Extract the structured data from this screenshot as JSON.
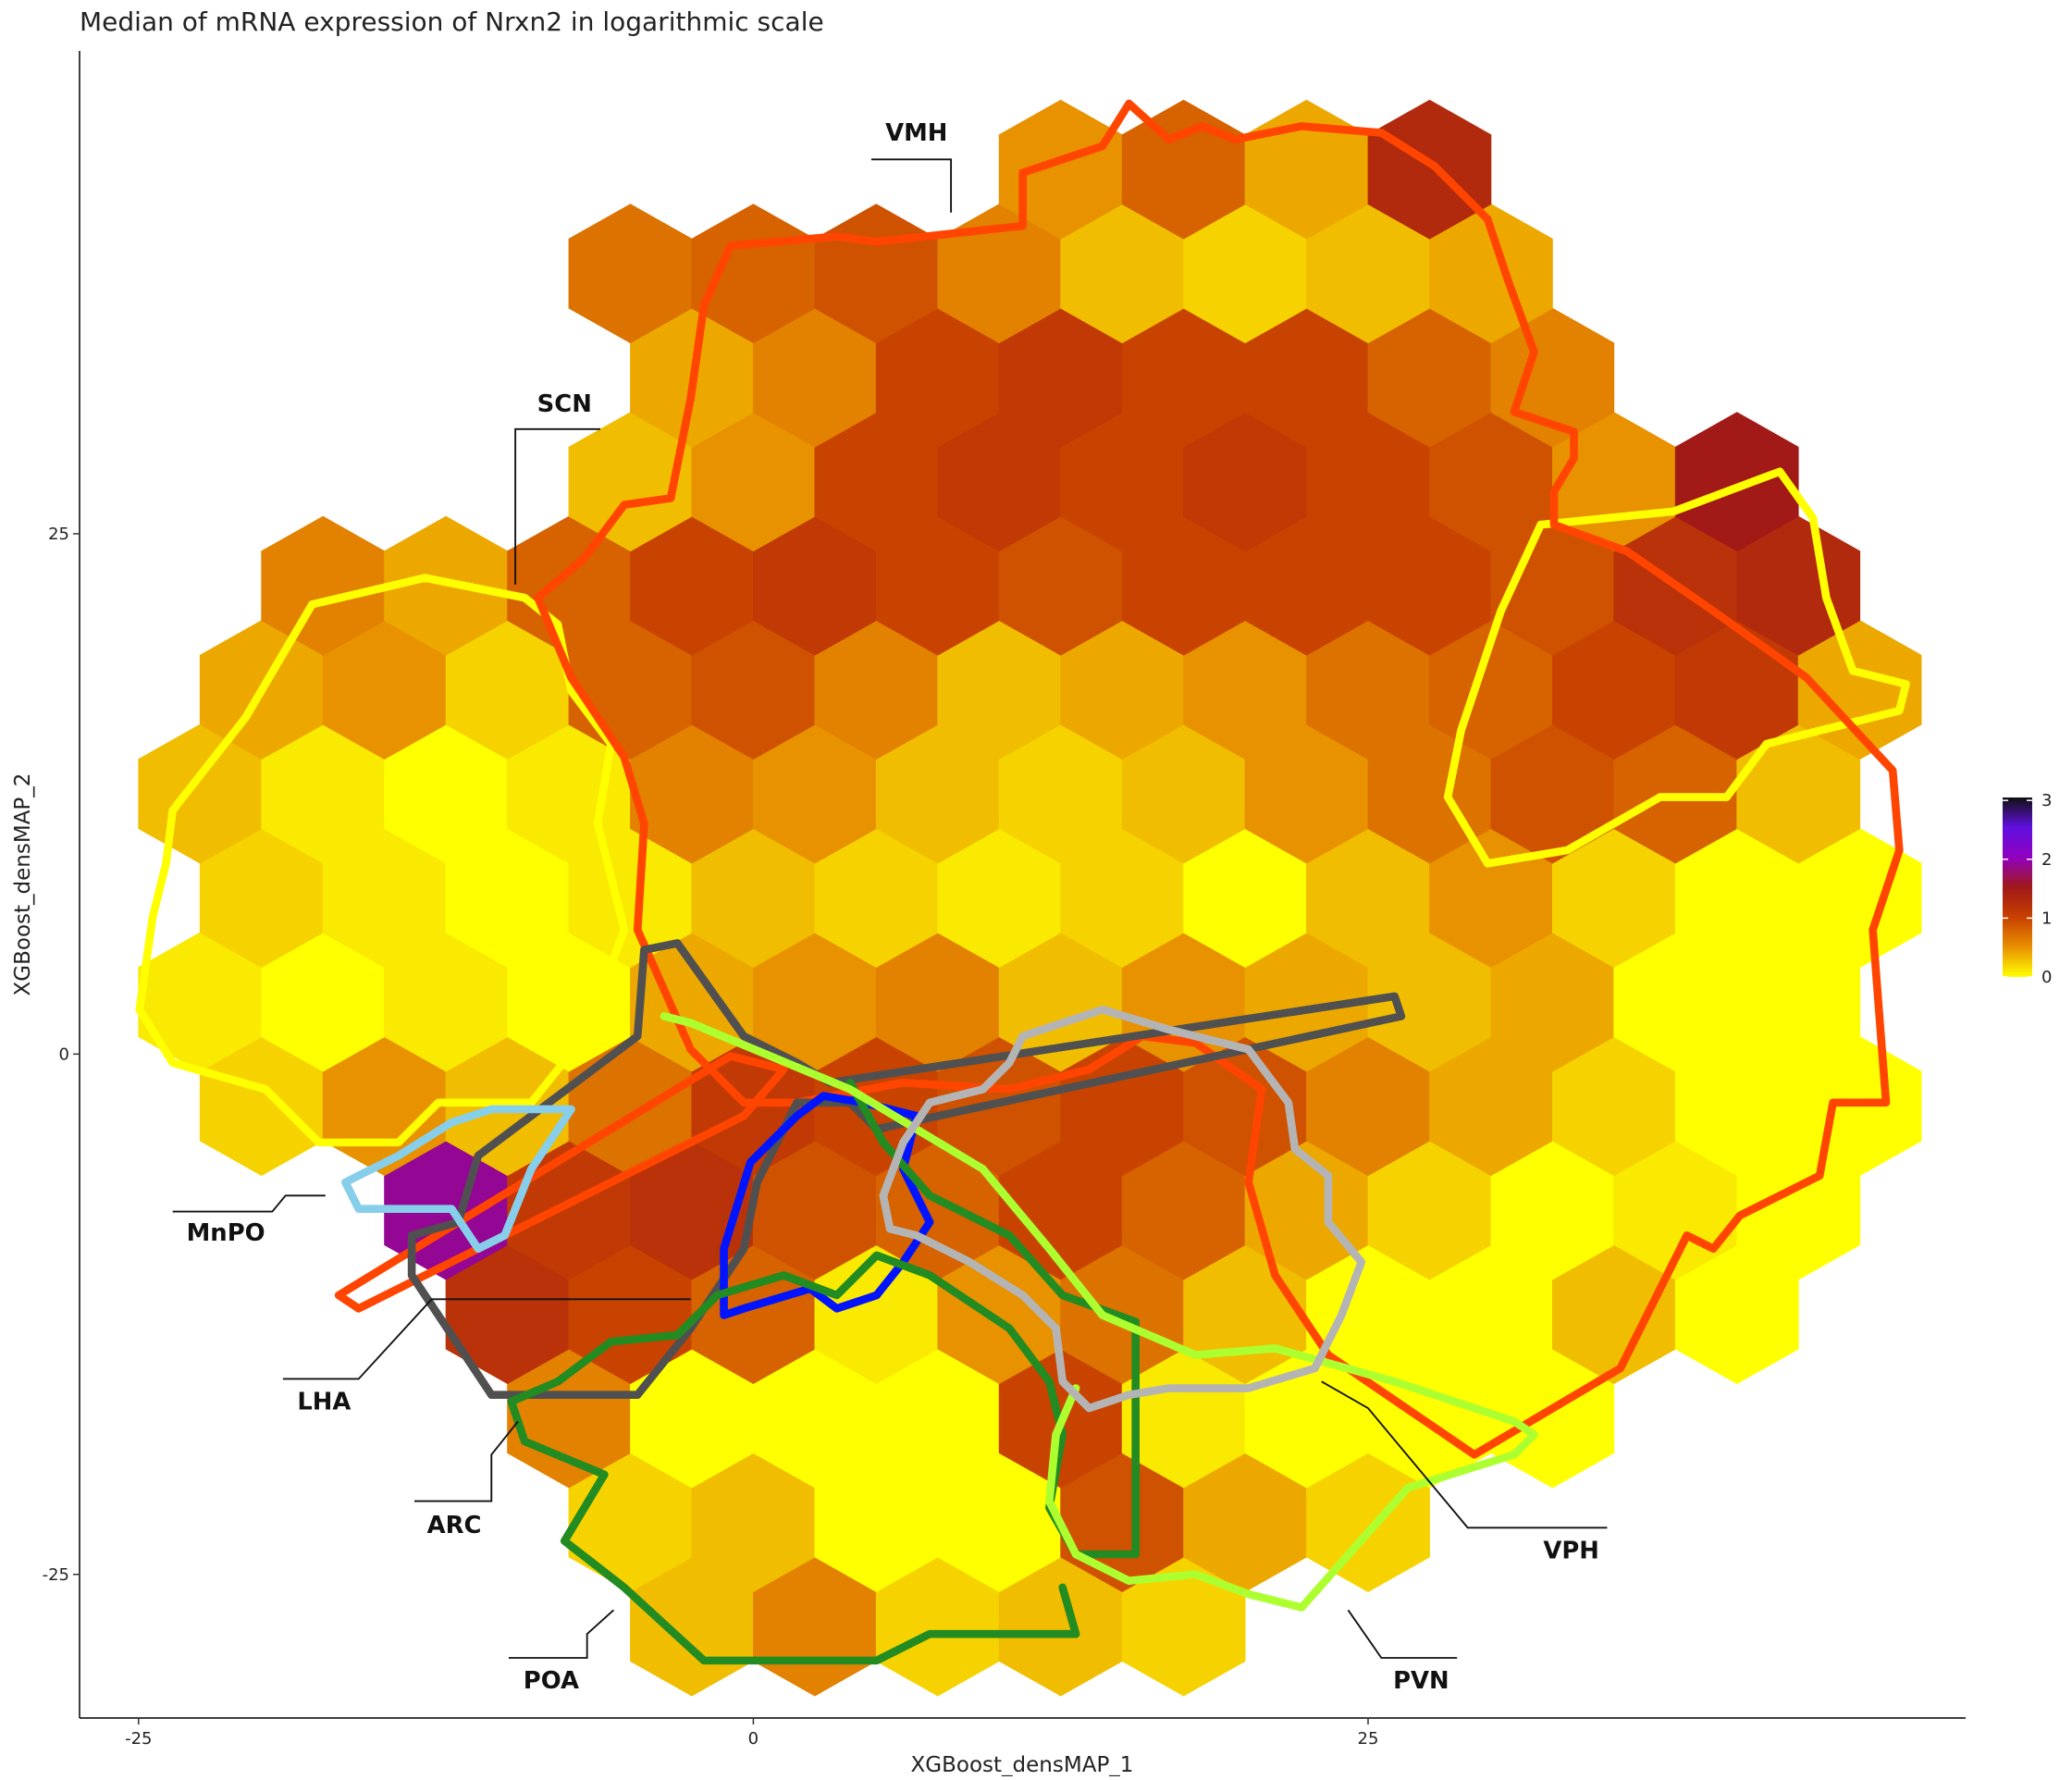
{
  "chart_data": {
    "type": "hexbin",
    "title": "Median of mRNA expression of Nrxn2 in logarithmic scale",
    "x_label": "XGBoost_densMAP_1",
    "y_label": "XGBoost_densMAP_2",
    "xlim": [
      -27.4,
      49.3
    ],
    "ylim": [
      -31.9,
      48.2
    ],
    "xticks": [
      -25,
      0,
      25
    ],
    "yticks": [
      -25,
      0,
      25
    ],
    "grid": false,
    "x": [
      -22.5,
      -20,
      -17.5,
      -15,
      -12.5,
      -10,
      -7.5,
      -5,
      -2.5,
      0,
      2.5,
      5,
      7.5,
      10,
      12.5,
      15,
      17.5,
      20,
      22.5,
      25,
      27.5,
      30,
      32.5,
      35,
      37.5,
      40,
      42.5,
      45
    ],
    "y": [
      -27.5,
      -22.5,
      -17.5,
      -12.5,
      -7.5,
      -2.5,
      2.5,
      7.5,
      12.5,
      17.5,
      22.5,
      27.5,
      32.5,
      37.5,
      42.5
    ],
    "values": [
      [
        null,
        null,
        null,
        null,
        null,
        null,
        null,
        null,
        0.3,
        null,
        0.6,
        null,
        0.2,
        null,
        0.3,
        null,
        0.2,
        null,
        null,
        null,
        null,
        null,
        null,
        null,
        null,
        null,
        null,
        null
      ],
      [
        null,
        null,
        null,
        null,
        null,
        null,
        null,
        0.2,
        null,
        0.3,
        null,
        0,
        null,
        0,
        null,
        0.9,
        null,
        0.4,
        null,
        0.2,
        null,
        null,
        null,
        null,
        null,
        null,
        null,
        null
      ],
      [
        null,
        null,
        null,
        null,
        null,
        null,
        0.6,
        null,
        0,
        null,
        0,
        null,
        0,
        null,
        1.0,
        null,
        0.1,
        null,
        0,
        null,
        0,
        null,
        0,
        null,
        null,
        null,
        null,
        null
      ],
      [
        null,
        null,
        null,
        null,
        null,
        1.2,
        null,
        1.0,
        null,
        0.8,
        null,
        0.1,
        null,
        0.5,
        null,
        0.7,
        null,
        0.3,
        null,
        0,
        null,
        0,
        null,
        0.3,
        null,
        0,
        null,
        null
      ],
      [
        null,
        null,
        null,
        null,
        1.9,
        null,
        1.1,
        null,
        1.2,
        null,
        0.9,
        null,
        0.8,
        null,
        1.0,
        null,
        0.8,
        null,
        0.4,
        null,
        0.2,
        null,
        0,
        null,
        0.1,
        null,
        0,
        null
      ],
      [
        null,
        0.2,
        null,
        0.5,
        null,
        0.3,
        null,
        0.7,
        null,
        1.1,
        null,
        1.0,
        null,
        0.9,
        null,
        1.0,
        null,
        0.9,
        null,
        0.6,
        null,
        0.4,
        null,
        0.2,
        null,
        0,
        null,
        0
      ],
      [
        0.1,
        null,
        0,
        null,
        0.1,
        null,
        0,
        null,
        0.4,
        null,
        0.5,
        null,
        0.6,
        null,
        0.3,
        null,
        0.5,
        null,
        0.4,
        null,
        0.3,
        null,
        0.4,
        null,
        0,
        null,
        0,
        null
      ],
      [
        null,
        0.2,
        null,
        0.1,
        null,
        0,
        null,
        0.1,
        null,
        0.3,
        null,
        0.2,
        null,
        0.1,
        null,
        0.2,
        null,
        0,
        null,
        0.3,
        null,
        0.5,
        null,
        0.2,
        null,
        0,
        null,
        0
      ],
      [
        0.3,
        null,
        0.1,
        null,
        0,
        null,
        0.1,
        null,
        0.6,
        null,
        0.5,
        null,
        0.3,
        null,
        0.2,
        null,
        0.3,
        null,
        0.5,
        null,
        0.7,
        null,
        0.9,
        null,
        0.8,
        null,
        0.3,
        null
      ],
      [
        null,
        0.4,
        null,
        0.5,
        null,
        0.2,
        null,
        0.8,
        null,
        0.9,
        null,
        0.6,
        null,
        0.3,
        null,
        0.4,
        null,
        0.5,
        null,
        0.7,
        null,
        0.8,
        null,
        1.0,
        null,
        1.1,
        null,
        0.4
      ],
      [
        null,
        null,
        0.6,
        null,
        0.4,
        null,
        0.8,
        null,
        1.0,
        null,
        1.1,
        null,
        1.0,
        null,
        0.9,
        null,
        1.0,
        null,
        1.0,
        null,
        1.0,
        null,
        0.9,
        null,
        1.2,
        null,
        1.3,
        null
      ],
      [
        null,
        null,
        null,
        null,
        null,
        null,
        null,
        0.3,
        null,
        0.5,
        null,
        1.0,
        null,
        1.1,
        null,
        1.0,
        null,
        1.1,
        null,
        1.0,
        null,
        0.9,
        null,
        0.5,
        null,
        1.5,
        null,
        null
      ],
      [
        null,
        null,
        null,
        null,
        null,
        null,
        null,
        null,
        0.4,
        null,
        0.6,
        null,
        1.0,
        null,
        1.1,
        null,
        1.0,
        null,
        1.0,
        null,
        0.8,
        null,
        0.6,
        null,
        null,
        null,
        null,
        null
      ],
      [
        null,
        null,
        null,
        null,
        null,
        null,
        null,
        0.7,
        null,
        0.8,
        null,
        0.9,
        null,
        0.6,
        null,
        0.3,
        null,
        0.2,
        null,
        0.3,
        null,
        0.4,
        null,
        null,
        null,
        null,
        null,
        null
      ],
      [
        null,
        null,
        null,
        null,
        null,
        null,
        null,
        null,
        null,
        null,
        null,
        null,
        null,
        null,
        0.5,
        null,
        0.8,
        null,
        0.4,
        null,
        1.3,
        null,
        null,
        null,
        null,
        null,
        null,
        null
      ]
    ],
    "colors": [
      "#ffff00",
      "#e89000",
      "#c84000",
      "#a01818",
      "#9000c0",
      "#6010e0",
      "#101010"
    ],
    "clim": [
      0,
      3.05
    ],
    "cticks": [
      0,
      1,
      2,
      3
    ],
    "annotations": [
      "VMH",
      "SCN",
      "MnPO",
      "LHA",
      "ARC",
      "POA",
      "PVN",
      "VPH"
    ]
  }
}
